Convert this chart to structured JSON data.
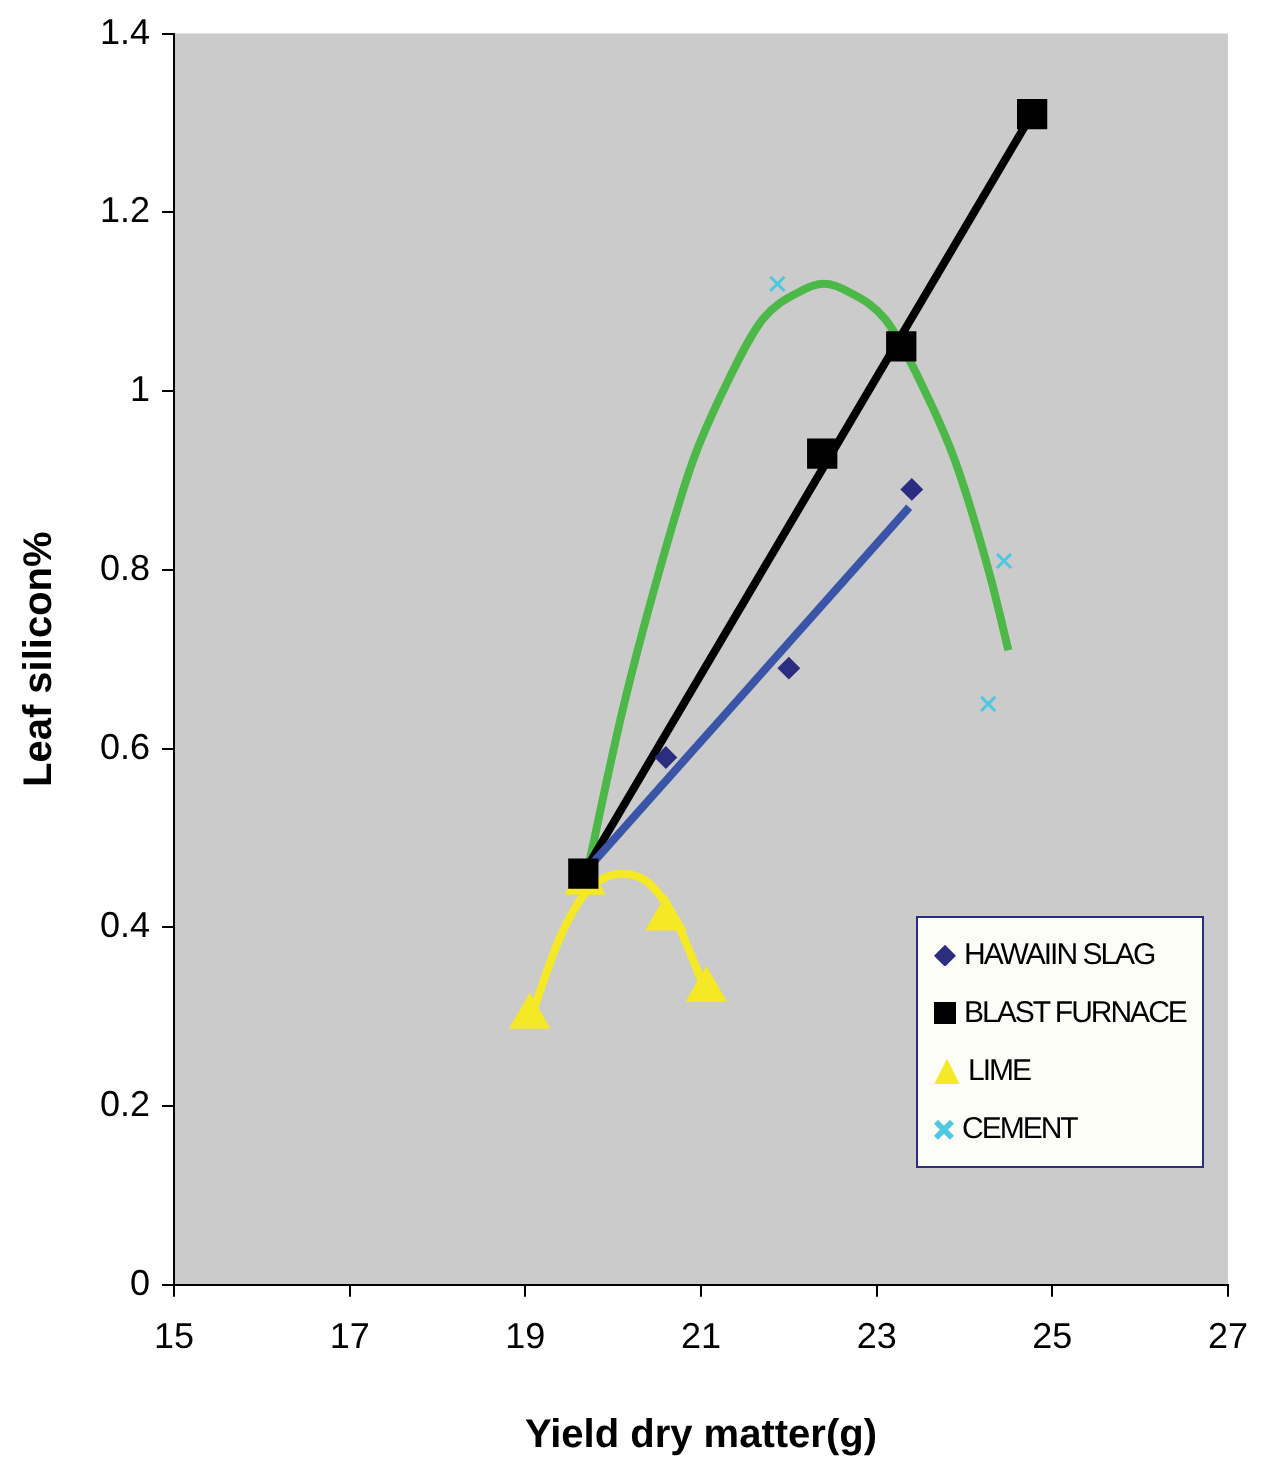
{
  "chart_data": {
    "type": "scatter",
    "xlabel": "Yield dry matter(g)",
    "ylabel": "Leaf silicon%",
    "xlim": [
      15,
      27
    ],
    "xticks": [
      15,
      17,
      19,
      21,
      23,
      25,
      27
    ],
    "ylim": [
      0,
      1.4
    ],
    "yticks": [
      0,
      0.2,
      0.4,
      0.6,
      0.8,
      1,
      1.2,
      1.4
    ],
    "grid": false,
    "legend": "bottom right",
    "series": [
      {
        "name": "HAWAIIN SLAG",
        "type": "scatter",
        "marker": "diamond",
        "color": "#2b2d80",
        "x": [
          20.6,
          22.0,
          23.4
        ],
        "values": [
          0.59,
          0.69,
          0.89
        ]
      },
      {
        "name": "BLAST FURNACE",
        "type": "scatter",
        "marker": "square",
        "color": "#000000",
        "x": [
          19.66,
          22.38,
          23.28,
          24.77
        ],
        "values": [
          0.46,
          0.93,
          1.05,
          1.31
        ]
      },
      {
        "name": "LIME",
        "type": "scatter",
        "marker": "triangle",
        "color": "#f5e926",
        "x": [
          19.05,
          19.68,
          20.6,
          21.06
        ],
        "values": [
          0.3,
          0.45,
          0.41,
          0.33
        ]
      },
      {
        "name": "CEMENT",
        "type": "scatter",
        "marker": "cross",
        "color": "#4ec8e0",
        "x": [
          21.87,
          24.27,
          24.45
        ],
        "values": [
          1.12,
          0.65,
          0.81
        ]
      },
      {
        "type": "line",
        "marker": "none",
        "color": "#3a55a8",
        "x": [
          19.66,
          23.37
        ],
        "values": [
          0.46,
          0.87
        ]
      },
      {
        "type": "line",
        "marker": "none",
        "color": "#000000",
        "x": [
          19.66,
          24.77
        ],
        "values": [
          0.46,
          1.31
        ]
      },
      {
        "type": "line",
        "marker": "none",
        "color": "#f5e926",
        "x": [
          19.1,
          19.4,
          19.7,
          20.1,
          20.4,
          20.7,
          21.05
        ],
        "values": [
          0.31,
          0.39,
          0.44,
          0.46,
          0.45,
          0.41,
          0.33
        ]
      },
      {
        "type": "line",
        "marker": "none",
        "color": "#4cb848",
        "x": [
          19.7,
          20.1,
          20.5,
          20.9,
          21.3,
          21.7,
          22.1,
          22.4,
          22.7,
          23.1,
          23.5,
          23.9,
          24.3,
          24.5
        ],
        "values": [
          0.46,
          0.64,
          0.79,
          0.92,
          1.01,
          1.08,
          1.11,
          1.12,
          1.11,
          1.08,
          1.01,
          0.92,
          0.79,
          0.71
        ]
      }
    ]
  }
}
